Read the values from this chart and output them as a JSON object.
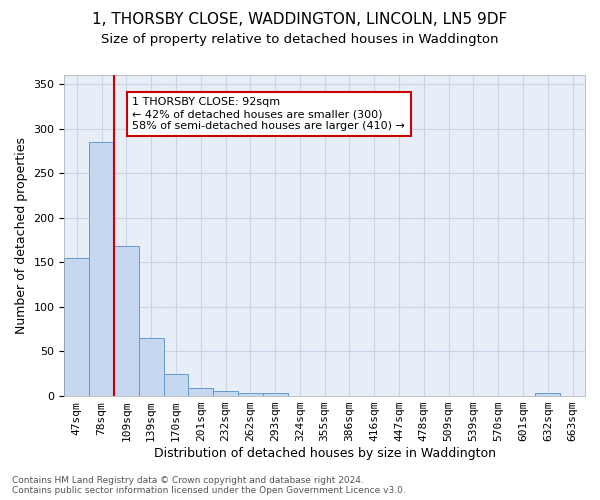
{
  "title": "1, THORSBY CLOSE, WADDINGTON, LINCOLN, LN5 9DF",
  "subtitle": "Size of property relative to detached houses in Waddington",
  "xlabel": "Distribution of detached houses by size in Waddington",
  "ylabel": "Number of detached properties",
  "bar_labels": [
    "47sqm",
    "78sqm",
    "109sqm",
    "139sqm",
    "170sqm",
    "201sqm",
    "232sqm",
    "262sqm",
    "293sqm",
    "324sqm",
    "355sqm",
    "386sqm",
    "416sqm",
    "447sqm",
    "478sqm",
    "509sqm",
    "539sqm",
    "570sqm",
    "601sqm",
    "632sqm",
    "663sqm"
  ],
  "bar_values": [
    155,
    285,
    168,
    65,
    25,
    9,
    6,
    4,
    3,
    0,
    0,
    0,
    0,
    0,
    0,
    0,
    0,
    0,
    0,
    3,
    0
  ],
  "bar_color": "#c5d8f0",
  "bar_edge_color": "#6699cc",
  "grid_color": "#c8d4e8",
  "background_color": "#e8eef8",
  "annotation_text": "1 THORSBY CLOSE: 92sqm\n← 42% of detached houses are smaller (300)\n58% of semi-detached houses are larger (410) →",
  "annotation_box_color": "#ffffff",
  "annotation_box_edge_color": "#cc0000",
  "vline_color": "#cc0000",
  "vline_x": 1.5,
  "ylim": [
    0,
    360
  ],
  "yticks": [
    0,
    50,
    100,
    150,
    200,
    250,
    300,
    350
  ],
  "footer_line1": "Contains HM Land Registry data © Crown copyright and database right 2024.",
  "footer_line2": "Contains public sector information licensed under the Open Government Licence v3.0.",
  "title_fontsize": 11,
  "subtitle_fontsize": 9.5,
  "xlabel_fontsize": 9,
  "ylabel_fontsize": 9,
  "tick_fontsize": 8
}
